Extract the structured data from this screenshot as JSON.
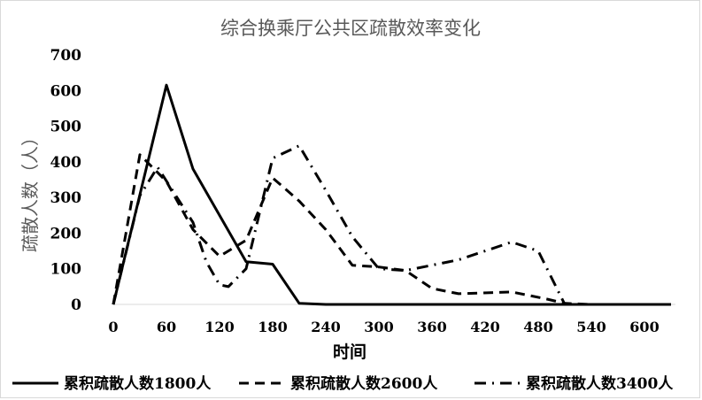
{
  "chart_data": {
    "type": "line",
    "title": "综合换乘厅公共区疏散效率变化",
    "xlabel": "时间",
    "ylabel": "疏散人数（人）",
    "xlim": [
      0,
      630
    ],
    "ylim": [
      0,
      700
    ],
    "x_ticks": [
      "0",
      "60",
      "120",
      "180",
      "240",
      "300",
      "360",
      "420",
      "480",
      "540",
      "600"
    ],
    "y_ticks": [
      "0",
      "100",
      "200",
      "300",
      "400",
      "500",
      "600",
      "700"
    ],
    "grid": false,
    "legend_position": "bottom",
    "series": [
      {
        "name": "累积疏散人数1800人",
        "dash": "solid",
        "points": [
          [
            0,
            0
          ],
          [
            60,
            615
          ],
          [
            90,
            380
          ],
          [
            150,
            120
          ],
          [
            180,
            113
          ],
          [
            210,
            3
          ],
          [
            240,
            0
          ],
          [
            630,
            0
          ]
        ]
      },
      {
        "name": "累积疏散人数2600人",
        "dash": "dash",
        "points": [
          [
            0,
            0
          ],
          [
            30,
            420
          ],
          [
            60,
            345
          ],
          [
            90,
            210
          ],
          [
            120,
            135
          ],
          [
            150,
            180
          ],
          [
            180,
            355
          ],
          [
            210,
            290
          ],
          [
            240,
            210
          ],
          [
            270,
            110
          ],
          [
            300,
            105
          ],
          [
            330,
            95
          ],
          [
            360,
            45
          ],
          [
            390,
            30
          ],
          [
            450,
            35
          ],
          [
            490,
            15
          ],
          [
            510,
            3
          ],
          [
            540,
            0
          ],
          [
            630,
            0
          ]
        ]
      },
      {
        "name": "累积疏散人数3400人",
        "dash": "dashdot",
        "points": [
          [
            0,
            0
          ],
          [
            30,
            305
          ],
          [
            50,
            385
          ],
          [
            90,
            230
          ],
          [
            105,
            120
          ],
          [
            120,
            55
          ],
          [
            130,
            50
          ],
          [
            150,
            100
          ],
          [
            180,
            410
          ],
          [
            210,
            445
          ],
          [
            240,
            320
          ],
          [
            270,
            190
          ],
          [
            300,
            100
          ],
          [
            330,
            95
          ],
          [
            390,
            125
          ],
          [
            420,
            150
          ],
          [
            450,
            175
          ],
          [
            480,
            150
          ],
          [
            510,
            0
          ],
          [
            630,
            0
          ]
        ]
      }
    ]
  }
}
